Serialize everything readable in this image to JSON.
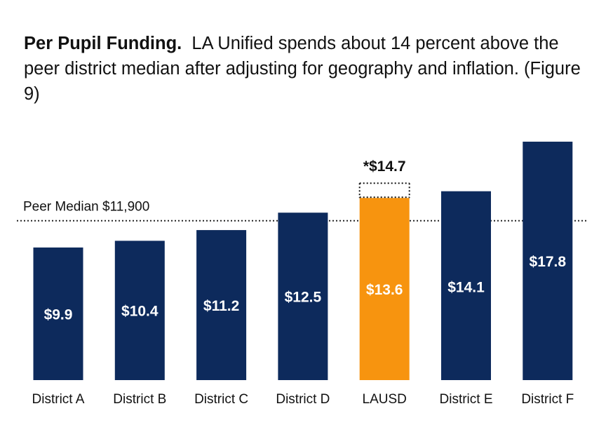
{
  "heading": {
    "bold": "Per Pupil Funding.",
    "text": "LA Unified spends about 14 percent above the peer district median after adjusting for geography and inflation. (Figure 9)"
  },
  "colors": {
    "navy": "#0d2a5c",
    "highlight": "#f7940f"
  },
  "chart_data": {
    "type": "bar",
    "title": "Per Pupil Funding",
    "unit": "thousands of dollars",
    "categories": [
      "District A",
      "District B",
      "District C",
      "District D",
      "LAUSD",
      "District E",
      "District F"
    ],
    "values": [
      9.9,
      10.4,
      11.2,
      12.5,
      13.6,
      14.1,
      17.8
    ],
    "value_labels": [
      "$9.9",
      "$10.4",
      "$11.2",
      "$12.5",
      "$13.6",
      "$14.1",
      "$17.8"
    ],
    "highlight_index": 4,
    "highlight_extension": {
      "value": 14.7,
      "label": "*$14.7"
    },
    "reference_line": {
      "value": 11.9,
      "label": "Peer Median $11,900"
    },
    "ylim": [
      0,
      18
    ],
    "xlabel": "",
    "ylabel": "",
    "grid": false
  }
}
